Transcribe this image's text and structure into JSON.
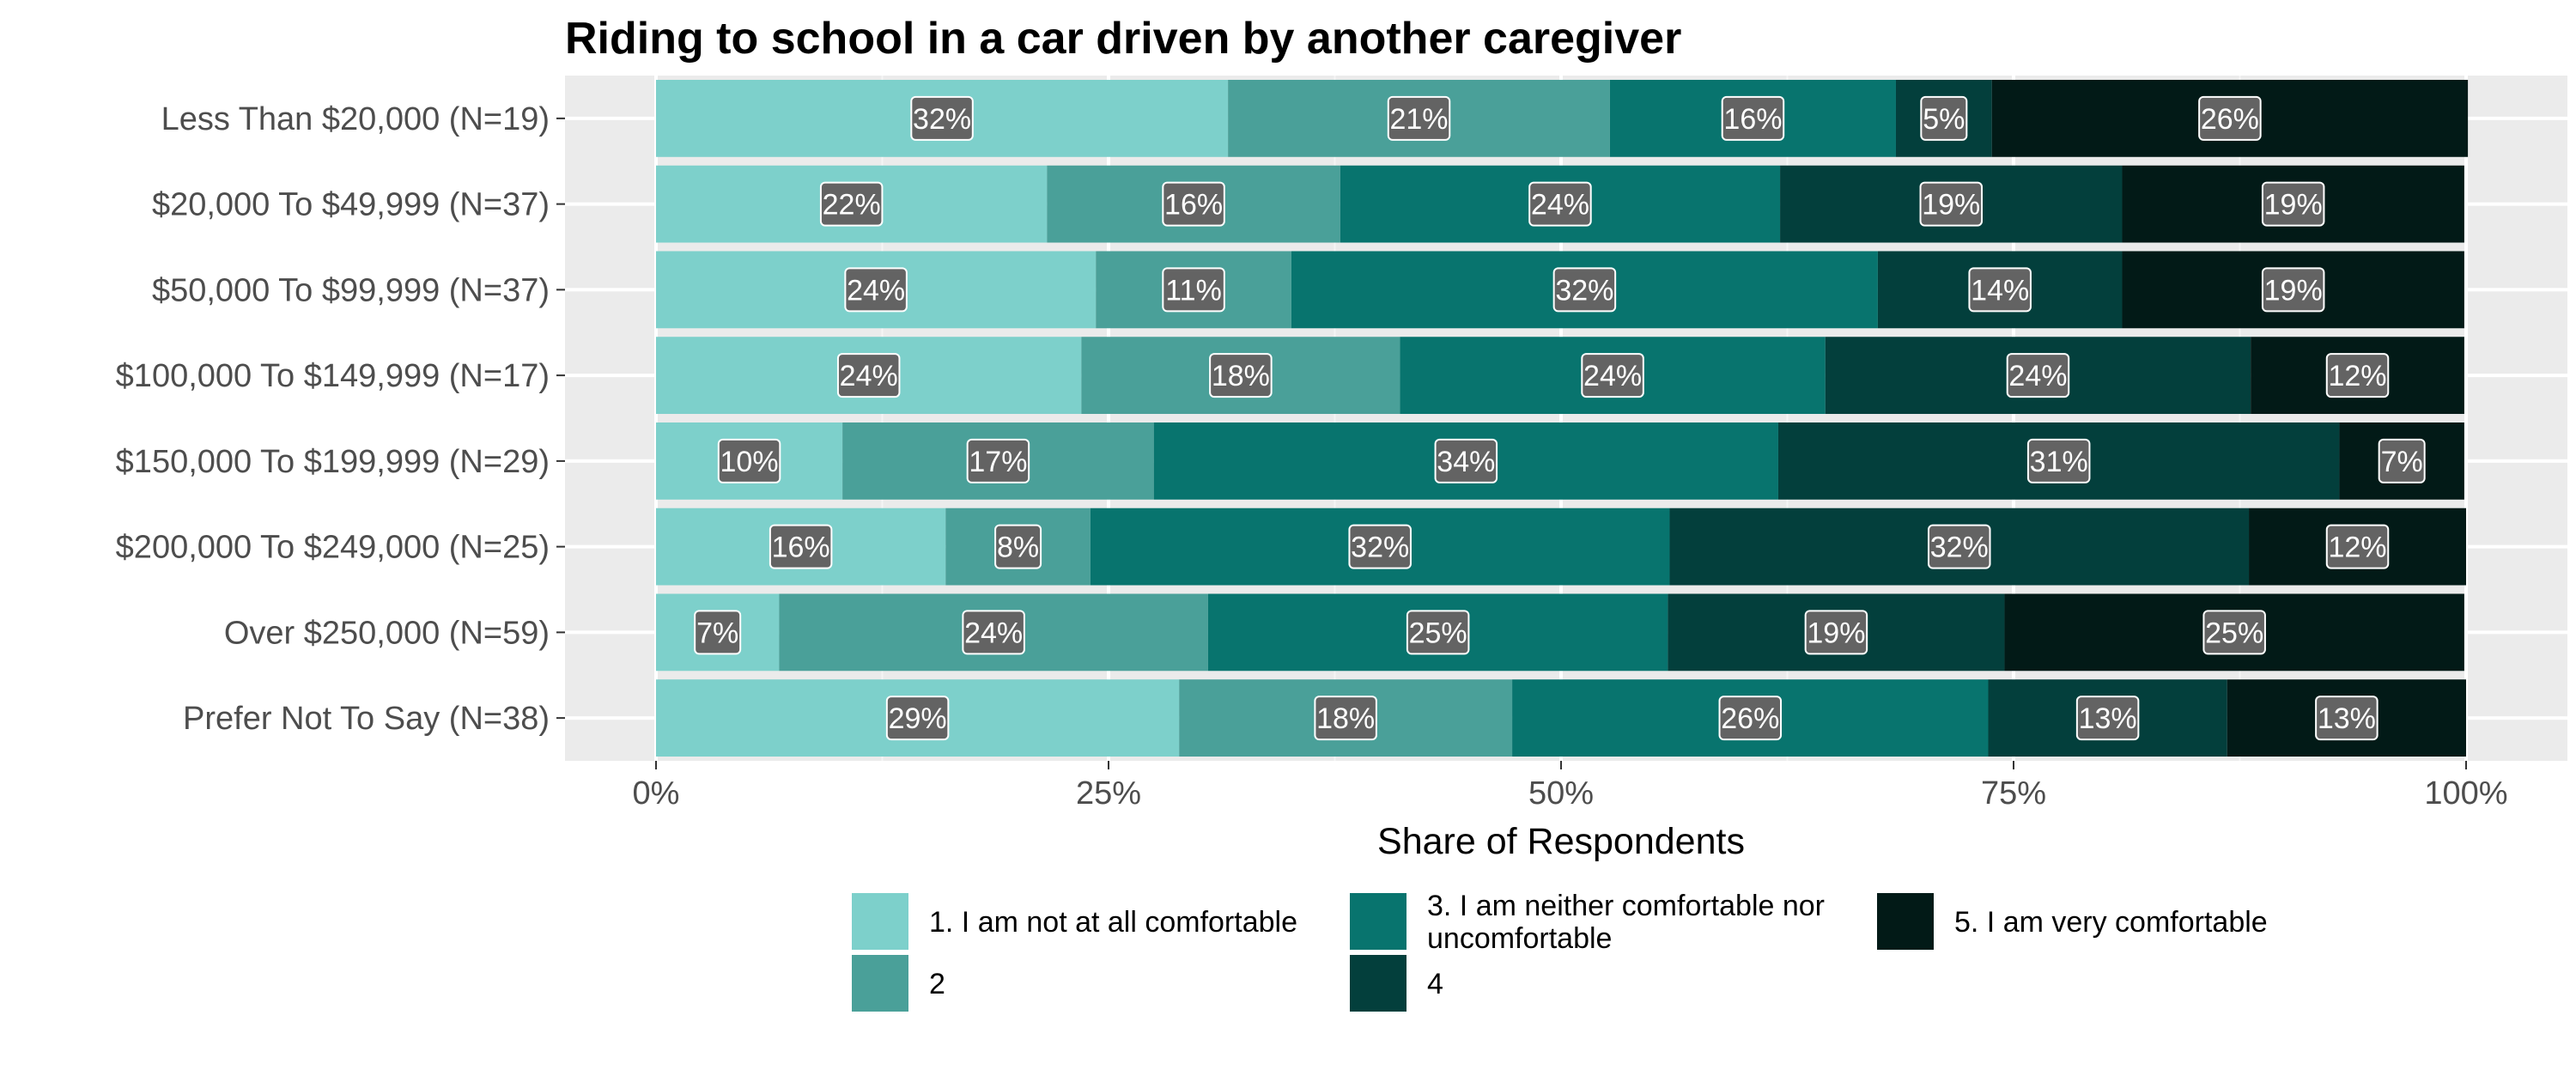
{
  "chart_data": {
    "type": "bar",
    "orientation": "horizontal",
    "stacked": true,
    "percent_stacked": true,
    "title": "Riding to school in a car driven by another caregiver",
    "xlabel": "Share of Respondents",
    "ylabel": "",
    "xlim": [
      0,
      100
    ],
    "x_ticks": [
      "0%",
      "25%",
      "50%",
      "75%",
      "100%"
    ],
    "x_tick_values": [
      0,
      25,
      50,
      75,
      100
    ],
    "grid": true,
    "legend_position": "bottom",
    "categories": [
      "Less Than $20,000 (N=19)",
      "$20,000 To $49,999 (N=37)",
      "$50,000 To $99,999 (N=37)",
      "$100,000 To $149,999 (N=17)",
      "$150,000 To $199,999 (N=29)",
      "$200,000 To $249,000 (N=25)",
      "Over $250,000 (N=59)",
      "Prefer Not To Say (N=38)"
    ],
    "series": [
      {
        "name": "1. I am not at all comfortable",
        "color": "#7dd0cb",
        "values": [
          31.6,
          21.6,
          24.3,
          23.5,
          10.3,
          16.0,
          6.8,
          28.9
        ],
        "labels": [
          "32%",
          "22%",
          "24%",
          "24%",
          "10%",
          "16%",
          "7%",
          "29%"
        ]
      },
      {
        "name": "2",
        "color": "#4aa099",
        "values": [
          21.1,
          16.2,
          10.8,
          17.6,
          17.2,
          8.0,
          23.7,
          18.4
        ],
        "labels": [
          "21%",
          "16%",
          "11%",
          "18%",
          "17%",
          "8%",
          "24%",
          "18%"
        ]
      },
      {
        "name": "3. I am neither comfortable nor uncomfortable",
        "color": "#08746e",
        "values": [
          15.8,
          24.3,
          32.4,
          23.5,
          34.5,
          32.0,
          25.4,
          26.3
        ],
        "labels": [
          "16%",
          "24%",
          "32%",
          "24%",
          "34%",
          "32%",
          "25%",
          "26%"
        ]
      },
      {
        "name": "4",
        "color": "#033f3c",
        "values": [
          5.3,
          18.9,
          13.5,
          23.5,
          31.0,
          32.0,
          18.6,
          13.2
        ],
        "labels": [
          "5%",
          "19%",
          "14%",
          "24%",
          "31%",
          "32%",
          "19%",
          "13%"
        ]
      },
      {
        "name": "5. I am very comfortable",
        "color": "#021a17",
        "values": [
          26.3,
          18.9,
          18.9,
          11.8,
          6.9,
          12.0,
          25.4,
          13.2
        ],
        "labels": [
          "26%",
          "19%",
          "19%",
          "12%",
          "7%",
          "12%",
          "25%",
          "13%"
        ]
      }
    ],
    "legend": [
      {
        "lines": [
          "1. I am not at all comfortable"
        ],
        "series": 0
      },
      {
        "lines": [
          "2"
        ],
        "series": 1
      },
      {
        "lines": [
          "3. I am neither comfortable nor",
          "uncomfortable"
        ],
        "series": 2
      },
      {
        "lines": [
          "4"
        ],
        "series": 3
      },
      {
        "lines": [
          "5. I am very comfortable"
        ],
        "series": 4
      }
    ],
    "colors": {
      "panel_background": "#ebebeb",
      "grid_major": "#ffffff",
      "grid_minor": "#f5f5f5",
      "label_box": "#636363"
    }
  }
}
